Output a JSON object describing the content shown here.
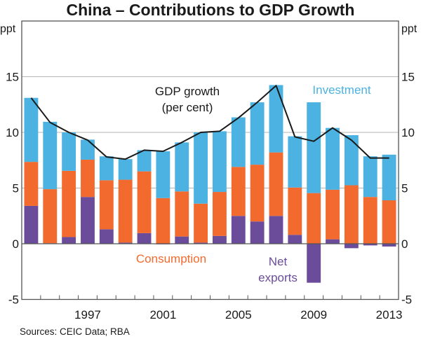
{
  "chart_data": {
    "type": "bar",
    "stacked": true,
    "title": "China – Contributions to GDP Growth",
    "ylabel_left": "ppt",
    "ylabel_right": "ppt",
    "xlabel": "",
    "ylim": [
      -5,
      20
    ],
    "yticks": [
      -5,
      0,
      5,
      10,
      15
    ],
    "grid": true,
    "categories": [
      "1994",
      "1995",
      "1996",
      "1997",
      "1998",
      "1999",
      "2000",
      "2001",
      "2002",
      "2003",
      "2004",
      "2005",
      "2006",
      "2007",
      "2008",
      "2009",
      "2010",
      "2011",
      "2012",
      "2013"
    ],
    "xtick_labels": [
      {
        "index": 3,
        "label": "1997"
      },
      {
        "index": 7,
        "label": "2001"
      },
      {
        "index": 11,
        "label": "2005"
      },
      {
        "index": 15,
        "label": "2009"
      },
      {
        "index": 19,
        "label": "2013"
      }
    ],
    "series": [
      {
        "name": "Net exports",
        "label": "Net\nexports",
        "color": "#6b4c9a",
        "values": [
          3.4,
          0.05,
          0.6,
          4.2,
          1.3,
          0.1,
          0.95,
          -0.05,
          0.65,
          0.1,
          0.7,
          2.5,
          2.0,
          2.5,
          0.8,
          -3.5,
          0.4,
          -0.4,
          -0.15,
          -0.25
        ]
      },
      {
        "name": "Consumption",
        "label": "Consumption",
        "color": "#f26a2e",
        "values": [
          3.95,
          4.85,
          5.95,
          3.35,
          4.4,
          5.65,
          5.55,
          4.1,
          4.05,
          3.5,
          3.95,
          4.4,
          5.1,
          5.7,
          4.25,
          4.55,
          4.45,
          5.25,
          4.2,
          3.9
        ]
      },
      {
        "name": "Investment",
        "label": "Investment",
        "color": "#4bb2e2",
        "values": [
          5.75,
          6.05,
          3.45,
          1.8,
          2.15,
          1.85,
          1.9,
          4.2,
          4.4,
          6.4,
          5.45,
          4.45,
          5.6,
          6.05,
          4.6,
          8.15,
          5.55,
          4.5,
          3.65,
          4.1
        ]
      }
    ],
    "line": {
      "name": "GDP growth (per cent)",
      "label_line1": "GDP growth",
      "label_line2": "(per cent)",
      "color": "#1a1a1a",
      "values": [
        13.1,
        10.9,
        10.0,
        9.3,
        7.8,
        7.6,
        8.4,
        8.3,
        9.1,
        10.0,
        10.1,
        11.3,
        12.7,
        14.2,
        9.6,
        9.2,
        10.4,
        9.3,
        7.7,
        7.7
      ]
    },
    "source": "Sources:  CEIC Data; RBA"
  }
}
